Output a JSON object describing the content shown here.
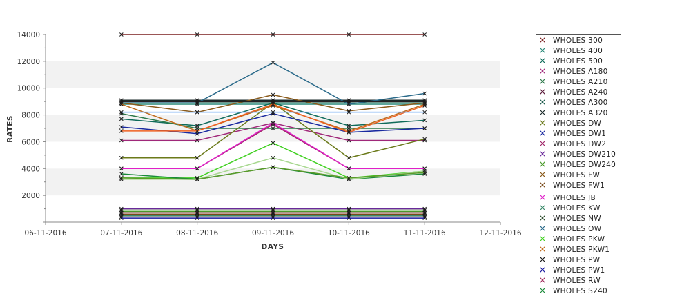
{
  "chart_data": {
    "type": "line",
    "xlabel": "DAYS",
    "ylabel": "RATES",
    "x_ticks": [
      "06-11-2016",
      "07-11-2016",
      "08-11-2016",
      "09-11-2016",
      "10-11-2016",
      "11-11-2016",
      "12-11-2016"
    ],
    "categories": [
      "07-11-2016",
      "08-11-2016",
      "09-11-2016",
      "10-11-2016",
      "11-11-2016"
    ],
    "ylim": [
      0,
      14000
    ],
    "y_ticks": [
      2000,
      4000,
      6000,
      8000,
      10000,
      12000,
      14000
    ],
    "grid": "alternating horizontal bands",
    "legend_position": "right",
    "series": [
      {
        "name": "WHOLES 300",
        "color": "#7a1e1e",
        "values": [
          14000,
          14000,
          14000,
          14000,
          14000
        ]
      },
      {
        "name": "WHOLES 400",
        "color": "#2a8a7a",
        "values": [
          8800,
          8800,
          8800,
          8800,
          8800
        ]
      },
      {
        "name": "WHOLES 500",
        "color": "#0f6b5a",
        "values": [
          7700,
          7200,
          8900,
          7200,
          7600
        ]
      },
      {
        "name": "WHOLES A180",
        "color": "#a0287a",
        "values": [
          6100,
          6100,
          7400,
          6100,
          6100
        ]
      },
      {
        "name": "WHOLES A210",
        "color": "#2d7a4a",
        "values": [
          8100,
          7000,
          7000,
          7000,
          7000
        ]
      },
      {
        "name": "WHOLES A240",
        "color": "#5a1a3a",
        "values": [
          9000,
          9000,
          9000,
          9000,
          9000
        ]
      },
      {
        "name": "WHOLES A300",
        "color": "#1a5a4a",
        "values": [
          8900,
          8900,
          8900,
          8900,
          8900
        ]
      },
      {
        "name": "WHOLES A320",
        "color": "#1a2a2a",
        "values": [
          9100,
          9100,
          9100,
          9100,
          9100
        ]
      },
      {
        "name": "WHOLES DW",
        "color": "#6b7a1a",
        "values": [
          4800,
          4800,
          8900,
          4800,
          6200
        ]
      },
      {
        "name": "WHOLES DW1",
        "color": "#1a2aa0",
        "values": [
          7100,
          6600,
          8100,
          6700,
          7000
        ]
      },
      {
        "name": "WHOLES DW2",
        "color": "#a0286a",
        "values": [
          4000,
          4000,
          7300,
          4000,
          4000
        ]
      },
      {
        "name": "WHOLES DW210",
        "color": "#6a2a9a",
        "values": [
          1000,
          1000,
          1000,
          1000,
          1000
        ]
      },
      {
        "name": "WHOLES DW240",
        "color": "#4a9a2a",
        "values": [
          800,
          800,
          800,
          800,
          800
        ]
      },
      {
        "name": "WHOLES FW",
        "color": "#8a5a1a",
        "values": [
          8900,
          8200,
          9500,
          8300,
          8900
        ]
      },
      {
        "name": "WHOLES FW1",
        "color": "#7a4a1a",
        "values": [
          600,
          600,
          600,
          600,
          600
        ]
      },
      {
        "name": "WHOLES JB",
        "color": "#e020c8",
        "values": [
          4000,
          4000,
          7400,
          4000,
          4000
        ]
      },
      {
        "name": "WHOLES KW",
        "color": "#3a8a6a",
        "values": [
          500,
          500,
          500,
          500,
          500
        ]
      },
      {
        "name": "WHOLES NW",
        "color": "#2a4a2a",
        "values": [
          400,
          400,
          400,
          400,
          400
        ]
      },
      {
        "name": "WHOLES OW",
        "color": "#2a6a8a",
        "values": [
          8900,
          8900,
          11900,
          8800,
          9600
        ]
      },
      {
        "name": "WHOLES PKW",
        "color": "#40d020",
        "values": [
          3300,
          3300,
          5900,
          3300,
          3800
        ]
      },
      {
        "name": "WHOLES PKW1",
        "color": "#c06a1a",
        "values": [
          8800,
          6800,
          8700,
          6800,
          8800
        ]
      },
      {
        "name": "WHOLES PW",
        "color": "#1a1a1a",
        "values": [
          9000,
          9000,
          9000,
          9000,
          9000
        ]
      },
      {
        "name": "WHOLES PW1",
        "color": "#1a1aa0",
        "values": [
          300,
          300,
          300,
          300,
          300
        ]
      },
      {
        "name": "WHOLES RW",
        "color": "#a02a5a",
        "values": [
          700,
          700,
          700,
          700,
          700
        ]
      },
      {
        "name": "WHOLES S240",
        "color": "#1a8a3a",
        "values": [
          3600,
          3200,
          4100,
          3200,
          3600
        ]
      },
      {
        "color": "#f06020",
        "values": [
          6800,
          6800,
          8800,
          6700,
          8700
        ]
      },
      {
        "color": "#60a0f0",
        "values": [
          8200,
          8200,
          8200,
          8200,
          8200
        ]
      },
      {
        "color": "#a8d890",
        "values": [
          3200,
          3200,
          4800,
          3200,
          3800
        ]
      },
      {
        "color": "#80c060",
        "values": [
          900,
          900,
          900,
          900,
          900
        ]
      },
      {
        "color": "#5a9a2a",
        "values": [
          3300,
          3200,
          4100,
          3300,
          3700
        ]
      }
    ]
  }
}
